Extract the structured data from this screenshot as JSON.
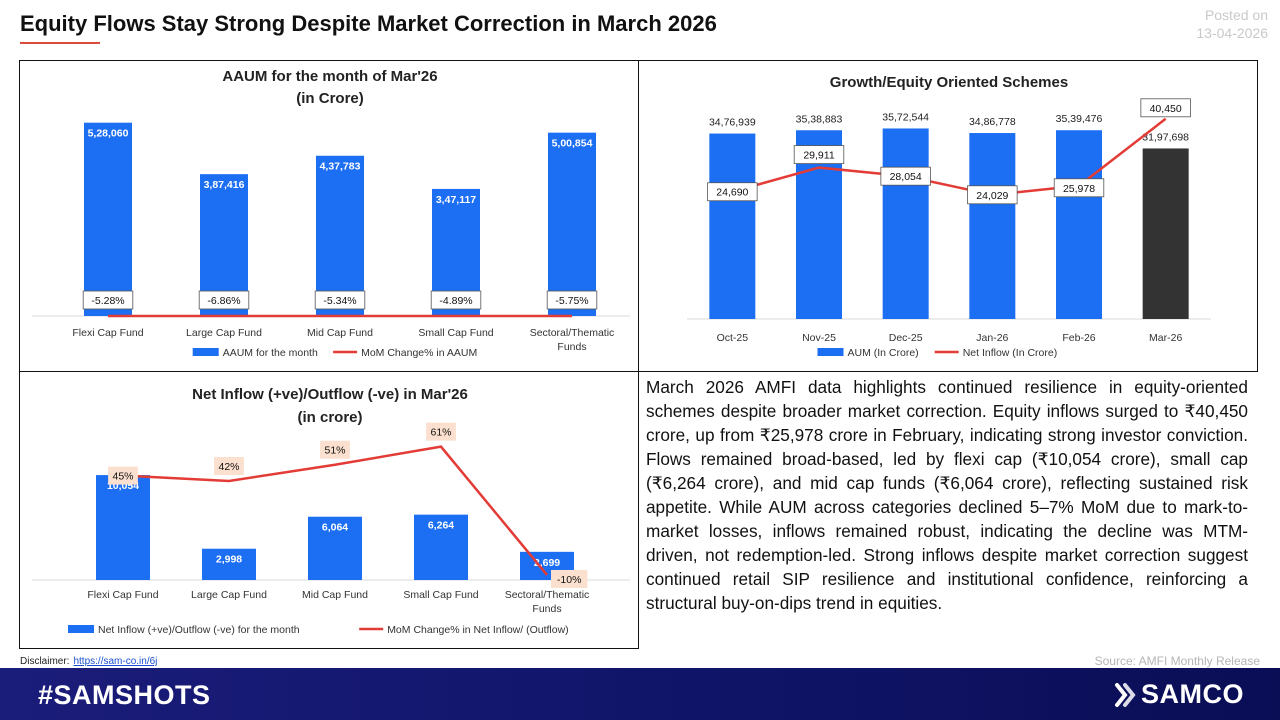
{
  "header": {
    "title": "Equity Flows Stay Strong Despite Market Correction in March 2026",
    "posted_label": "Posted on",
    "posted_date": "13-04-2026"
  },
  "colors": {
    "bar_blue": "#1c6ef2",
    "bar_dark": "#333333",
    "line_red": "#e33b36",
    "label_box_fill": "#fbe0cf",
    "footer_bg": "#12166b",
    "accent_underline": "#d94a3a"
  },
  "chart_data": [
    {
      "id": "aaum",
      "type": "bar",
      "title_lines": [
        "AAUM for the month of Mar'26",
        "(in Crore)"
      ],
      "categories": [
        [
          "Flexi Cap Fund"
        ],
        [
          "Large Cap Fund"
        ],
        [
          "Mid Cap Fund"
        ],
        [
          "Small Cap Fund"
        ],
        [
          "Sectoral/Thematic",
          "Funds"
        ]
      ],
      "series": [
        {
          "name": "AAUM for the month",
          "kind": "bar",
          "values": [
            528060,
            387416,
            437783,
            347117,
            500854
          ],
          "labels": [
            "5,28,060",
            "3,87,416",
            "4,37,783",
            "3,47,117",
            "5,00,854"
          ]
        },
        {
          "name": "MoM Change% in AAUM",
          "kind": "line",
          "values": [
            -5.28,
            -6.86,
            -5.34,
            -4.89,
            -5.75
          ],
          "labels": [
            "-5.28%",
            "-6.86%",
            "-5.34%",
            "-4.89%",
            "-5.75%"
          ]
        }
      ],
      "ylim": [
        0,
        560000
      ],
      "line_ylim": [
        -100,
        0
      ],
      "legend": "bottom",
      "grid": false
    },
    {
      "id": "growth",
      "type": "bar",
      "title_lines": [
        "Growth/Equity Oriented Schemes"
      ],
      "categories": [
        [
          "Oct-25"
        ],
        [
          "Nov-25"
        ],
        [
          "Dec-25"
        ],
        [
          "Jan-26"
        ],
        [
          "Feb-26"
        ],
        [
          "Mar-26"
        ]
      ],
      "series": [
        {
          "name": "AUM (In Crore)",
          "kind": "bar",
          "values": [
            3476939,
            3538883,
            3572544,
            3486778,
            3539476,
            3197698
          ],
          "labels": [
            "34,76,939",
            "35,38,883",
            "35,72,544",
            "34,86,778",
            "35,39,476",
            "31,97,698"
          ]
        },
        {
          "name": "Net Inflow (In Crore)",
          "kind": "line",
          "values": [
            24690,
            29911,
            28054,
            24029,
            25978,
            40450
          ],
          "labels": [
            "24,690",
            "29,911",
            "28,054",
            "24,029",
            "25,978",
            "40,450"
          ]
        }
      ],
      "ylim": [
        0,
        3900000
      ],
      "line_ylim": [
        0,
        43000
      ],
      "highlight_last_bar": true,
      "legend": "bottom",
      "grid": false
    },
    {
      "id": "inflow",
      "type": "bar",
      "title_lines": [
        "Net Inflow (+ve)/Outflow (-ve) in Mar'26",
        "(in crore)"
      ],
      "categories": [
        [
          "Flexi Cap Fund"
        ],
        [
          "Large Cap Fund"
        ],
        [
          "Mid Cap Fund"
        ],
        [
          "Small Cap Fund"
        ],
        [
          "Sectoral/Thematic",
          "Funds"
        ]
      ],
      "series": [
        {
          "name": "Net Inflow (+ve)/Outflow (-ve) for the month",
          "kind": "bar",
          "values": [
            10054,
            2998,
            6064,
            6264,
            2699
          ],
          "labels": [
            "10,054",
            "2,998",
            "6,064",
            "6,264",
            "2,699"
          ]
        },
        {
          "name": "MoM Change% in Net Inflow/ (Outflow)",
          "kind": "line",
          "values": [
            45,
            42,
            51,
            61,
            -10
          ],
          "labels": [
            "45%",
            "42%",
            "51%",
            "61%",
            "-10%"
          ]
        }
      ],
      "ylim": [
        0,
        11500
      ],
      "line_ylim": [
        -15,
        68
      ],
      "legend": "bottom",
      "grid": false
    }
  ],
  "summary": "March 2026 AMFI data highlights continued resilience in equity-oriented schemes despite broader market correction. Equity inflows surged to ₹40,450 crore, up from ₹25,978 crore in February, indicating strong investor conviction. Flows remained broad-based, led by flexi cap (₹10,054 crore), small cap (₹6,264 crore), and mid cap funds (₹6,064 crore), reflecting sustained risk appetite. While AUM across categories declined 5–7% MoM due to mark-to-market losses, inflows remained robust, indicating the decline was MTM-driven, not redemption-led. Strong inflows despite market correction suggest continued retail SIP resilience and institutional confidence, reinforcing a structural buy-on-dips trend in equities.",
  "footer": {
    "disclaimer_label": "Disclaimer:",
    "disclaimer_link": "https://sam-co.in/6j",
    "source": "Source: AMFI Monthly Release",
    "hashtag": "#SAMSHOTS",
    "brand": "SAMCO",
    "brand_icon": "samco-logo-icon"
  }
}
